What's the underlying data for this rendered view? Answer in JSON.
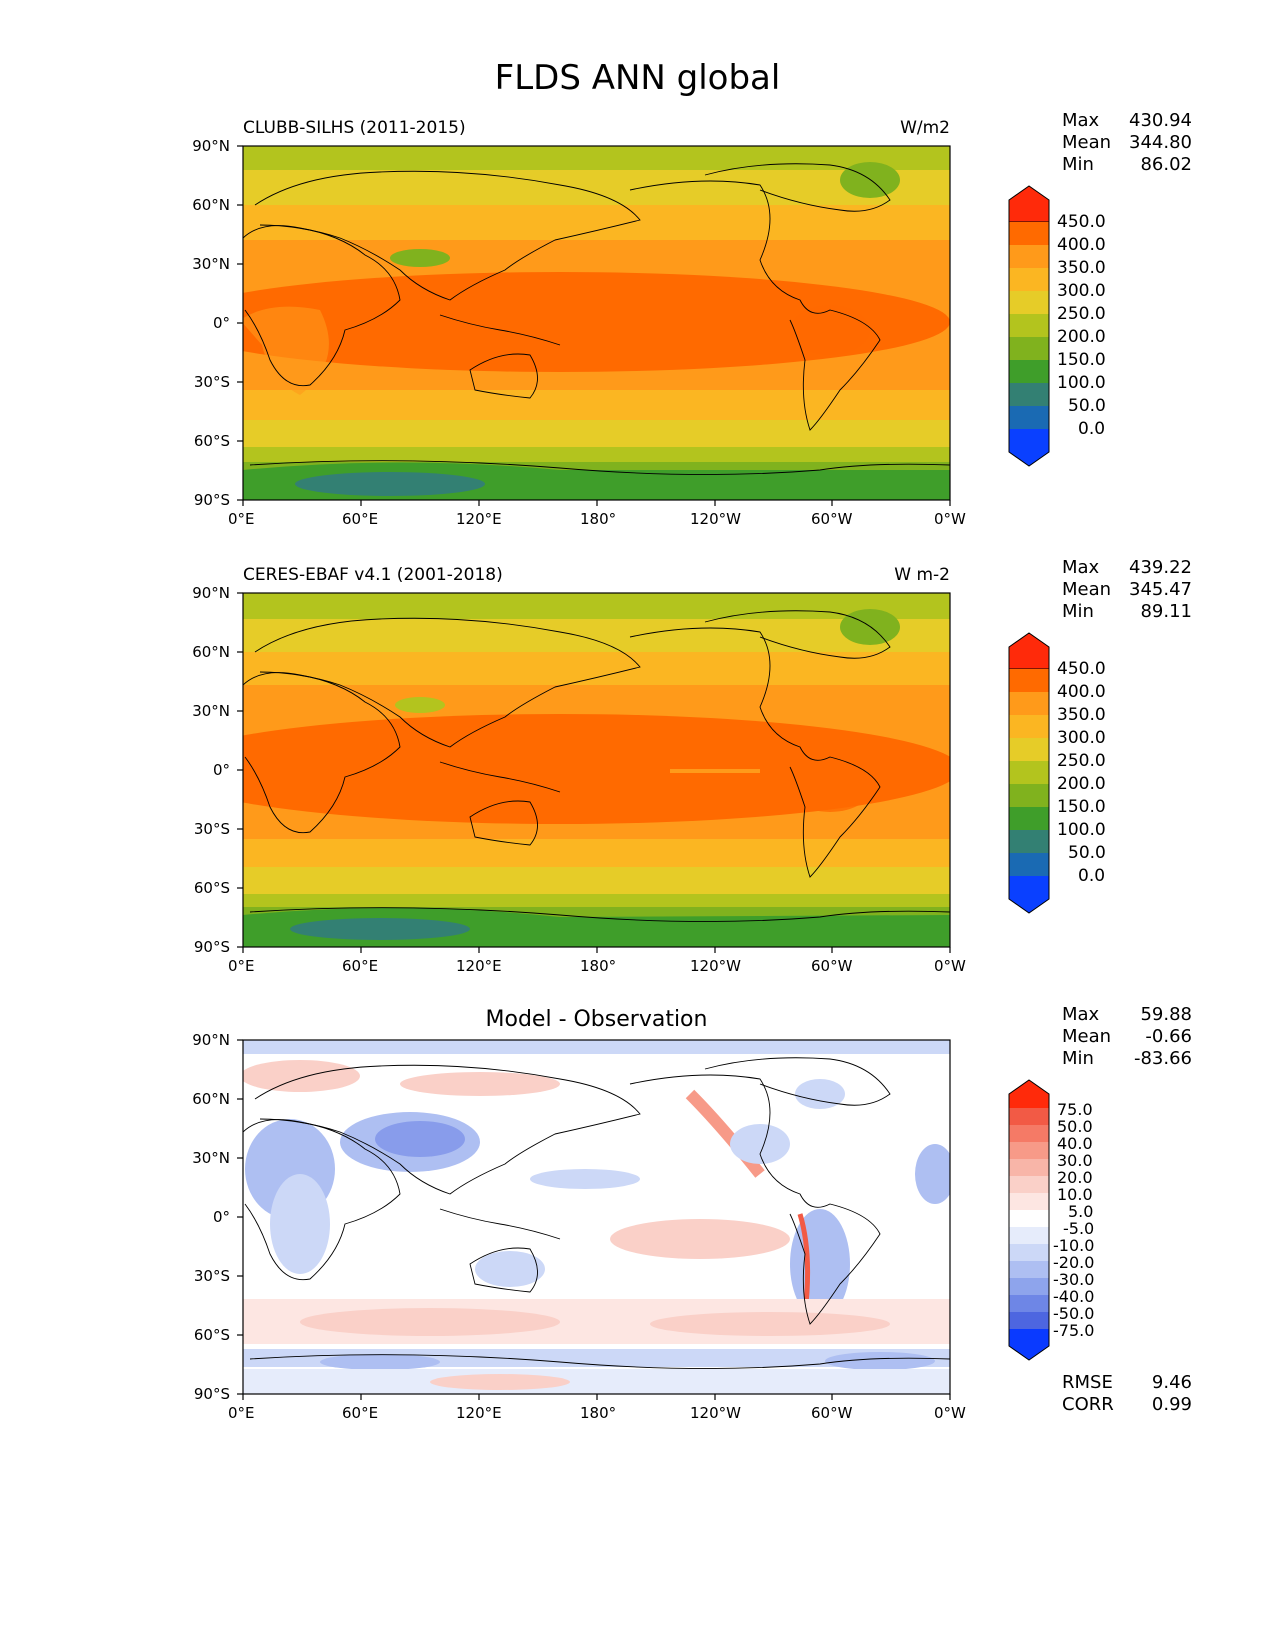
{
  "title": "FLDS ANN global",
  "x_ticks": [
    "0°E",
    "60°E",
    "120°E",
    "180°",
    "120°W",
    "60°W",
    "0°W"
  ],
  "y_ticks": [
    "90°N",
    "60°N",
    "30°N",
    "0°",
    "30°S",
    "60°S",
    "90°S"
  ],
  "abs_levels": [
    "450.0",
    "400.0",
    "350.0",
    "300.0",
    "250.0",
    "200.0",
    "150.0",
    "100.0",
    "50.0",
    "0.0"
  ],
  "abs_colors": [
    "#ff2a0a",
    "#ff6a00",
    "#ff9a1a",
    "#fbb622",
    "#e6cc28",
    "#b3c41e",
    "#80b21e",
    "#3f9e2a",
    "#338073",
    "#1a6ab3",
    "#0a40ff"
  ],
  "diff_levels": [
    "75.0",
    "50.0",
    "40.0",
    "30.0",
    "20.0",
    "10.0",
    "5.0",
    "-5.0",
    "-10.0",
    "-20.0",
    "-30.0",
    "-40.0",
    "-50.0",
    "-75.0"
  ],
  "diff_colors": [
    "#ff2a0a",
    "#f25a45",
    "#f57a66",
    "#f79a88",
    "#f8b5a8",
    "#fad0c8",
    "#fde6e2",
    "#ffffff",
    "#e6ecfb",
    "#ccd8f7",
    "#aebff2",
    "#8ea4ec",
    "#6e86e6",
    "#4d66e0",
    "#0a3aff"
  ],
  "panels": [
    {
      "left_title": "CLUBB-SILHS (2011-2015)",
      "right_title": "W/m2",
      "stats": {
        "max_label": "Max",
        "max": "430.94",
        "mean_label": "Mean",
        "mean": "344.80",
        "min_label": "Min",
        "min": "86.02"
      }
    },
    {
      "left_title": "CERES-EBAF v4.1 (2001-2018)",
      "right_title": "W m-2",
      "stats": {
        "max_label": "Max",
        "max": "439.22",
        "mean_label": "Mean",
        "mean": "345.47",
        "min_label": "Min",
        "min": "89.11"
      }
    },
    {
      "center_title": "Model - Observation",
      "stats": {
        "max_label": "Max",
        "max": "59.88",
        "mean_label": "Mean",
        "mean": "-0.66",
        "min_label": "Min",
        "min": "-83.66"
      },
      "scores": {
        "rmse_label": "RMSE",
        "rmse": "9.46",
        "corr_label": "CORR",
        "corr": "0.99"
      }
    }
  ]
}
